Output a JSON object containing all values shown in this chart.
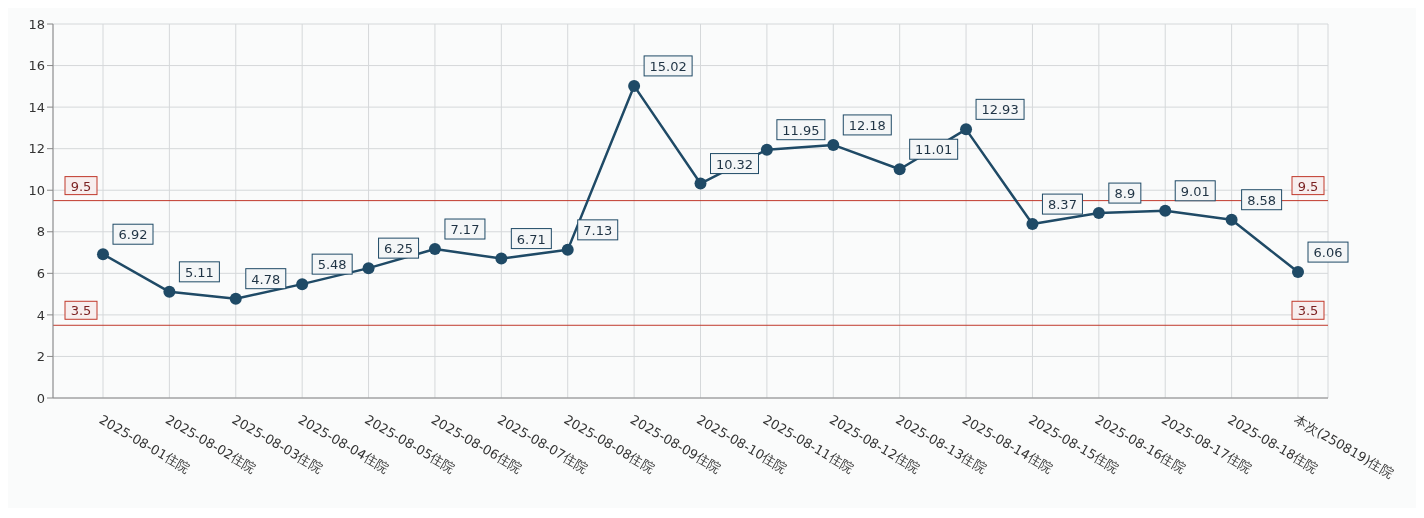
{
  "chart_data": {
    "type": "line",
    "categories": [
      "2025-08-01住院",
      "2025-08-02住院",
      "2025-08-03住院",
      "2025-08-04住院",
      "2025-08-05住院",
      "2025-08-06住院",
      "2025-08-07住院",
      "2025-08-08住院",
      "2025-08-09住院",
      "2025-08-10住院",
      "2025-08-11住院",
      "2025-08-12住院",
      "2025-08-13住院",
      "2025-08-14住院",
      "2025-08-15住院",
      "2025-08-16住院",
      "2025-08-17住院",
      "2025-08-18住院",
      "本次(250819)住院"
    ],
    "series": [
      {
        "color": "#1f4a66",
        "values": [
          6.92,
          5.11,
          4.78,
          5.48,
          6.25,
          7.17,
          6.71,
          7.13,
          15.02,
          10.32,
          11.95,
          12.18,
          11.01,
          12.93,
          8.37,
          8.9,
          9.01,
          8.58,
          6.06
        ]
      }
    ],
    "ylim": [
      0,
      18
    ],
    "yticks": [
      0,
      2,
      4,
      6,
      8,
      10,
      12,
      14,
      16,
      18
    ],
    "ref_lines": [
      {
        "axis": "y",
        "value": 9.5,
        "label": "9.5",
        "color": "#c0392b"
      },
      {
        "axis": "y",
        "value": 3.5,
        "label": "3.5",
        "color": "#c0392b"
      }
    ],
    "grid": true,
    "data_labels": true,
    "marker": "circle",
    "line_style": "solid",
    "legend": false
  }
}
